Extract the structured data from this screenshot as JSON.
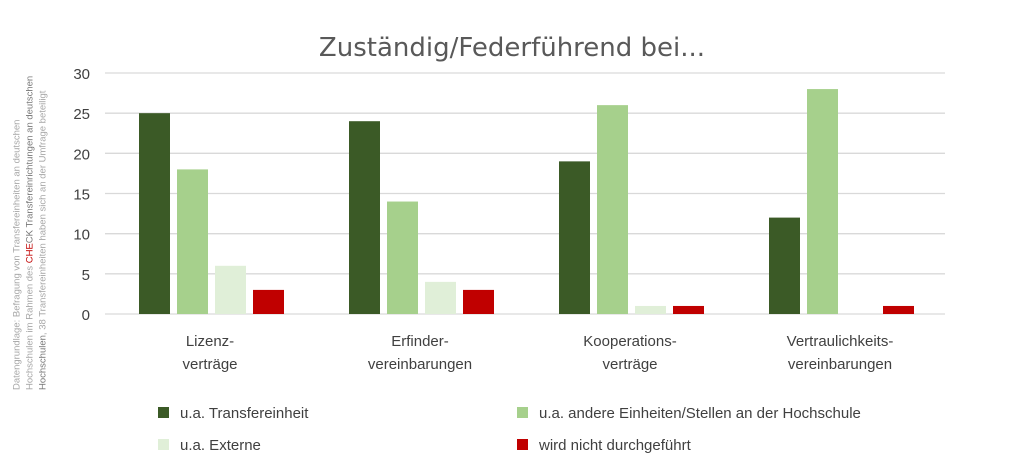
{
  "chart_data": {
    "type": "bar",
    "title": "Zuständig/Federführend bei...",
    "xlabel": "",
    "ylabel": "",
    "ylim": [
      0,
      30
    ],
    "yticks": [
      0,
      5,
      10,
      15,
      20,
      25,
      30
    ],
    "grid": true,
    "legend_position": "bottom",
    "categories": [
      [
        "Lizenz-",
        "verträge"
      ],
      [
        "Erfinder-",
        "vereinbarungen"
      ],
      [
        "Kooperations-",
        "verträge"
      ],
      [
        "Vertraulichkeits-",
        "vereinbarungen"
      ]
    ],
    "series": [
      {
        "name": "u.a. Transfereinheit",
        "color": "#3b5a26",
        "values": [
          25,
          24,
          19,
          12
        ]
      },
      {
        "name": "u.a. andere Einheiten/Stellen an der Hochschule",
        "color": "#a6d08c",
        "values": [
          18,
          14,
          26,
          28
        ]
      },
      {
        "name": "u.a. Externe",
        "color": "#e0efd8",
        "values": [
          6,
          4,
          1,
          0
        ]
      },
      {
        "name": "wird nicht durchgeführt",
        "color": "#c00000",
        "values": [
          3,
          3,
          1,
          1
        ]
      }
    ]
  },
  "source_note": {
    "line1": "Datengrundlage: Befragung von Transfereinheiten an deutschen",
    "line2a": "Hochschulen im Rahmen des ",
    "line2b": "CHE",
    "line2c": "CK Transfereinrichtungen an deutschen",
    "line3a": "Hochschulen",
    "line3b": ", 38 Transfereinheiten haben sich an der Umfrage beteiligt"
  }
}
